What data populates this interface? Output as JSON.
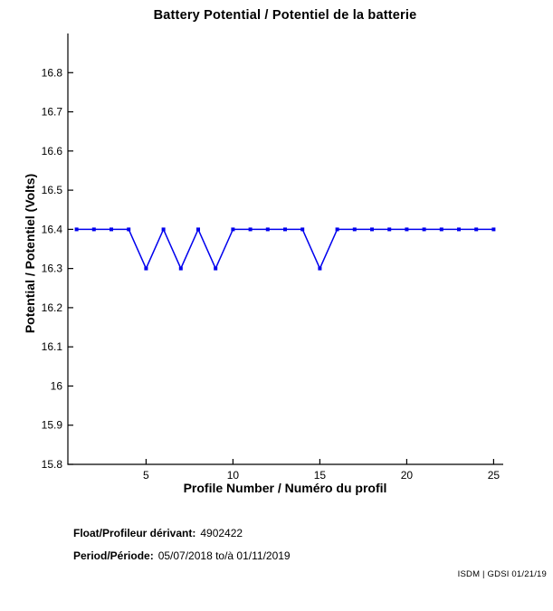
{
  "chart_data": {
    "type": "line",
    "title": "Battery Potential / Potentiel de la batterie",
    "xlabel": "Profile Number / Numéro du profil",
    "ylabel": "Potential / Potentiel (Volts)",
    "x": [
      1,
      2,
      3,
      4,
      5,
      6,
      7,
      8,
      9,
      10,
      11,
      12,
      13,
      14,
      15,
      16,
      17,
      18,
      19,
      20,
      21,
      22,
      23,
      24,
      25
    ],
    "values": [
      16.4,
      16.4,
      16.4,
      16.4,
      16.3,
      16.4,
      16.3,
      16.4,
      16.3,
      16.4,
      16.4,
      16.4,
      16.4,
      16.4,
      16.3,
      16.4,
      16.4,
      16.4,
      16.4,
      16.4,
      16.4,
      16.4,
      16.4,
      16.4,
      16.4
    ],
    "xlim": [
      0.5,
      25.5
    ],
    "ylim": [
      15.8,
      16.9
    ],
    "xticks": [
      5,
      10,
      15,
      20,
      25
    ],
    "ytick_values": [
      15.8,
      15.9,
      16.0,
      16.1,
      16.2,
      16.3,
      16.4,
      16.5,
      16.6,
      16.7,
      16.8
    ],
    "ytick_labels": [
      "15.8",
      "15.9",
      "16",
      "16.1",
      "16.2",
      "16.3",
      "16.4",
      "16.5",
      "16.6",
      "16.7",
      "16.8"
    ],
    "grid": false,
    "legend": "none",
    "line_color": "#0000ee",
    "marker": "square-dot"
  },
  "footer": {
    "float_label": "Float/Profileur dérivant:",
    "float_value": "4902422",
    "period_label": "Period/Période:",
    "period_value": "05/07/2018 to/à  01/11/2019",
    "credit": "ISDM | GDSI 01/21/19"
  }
}
